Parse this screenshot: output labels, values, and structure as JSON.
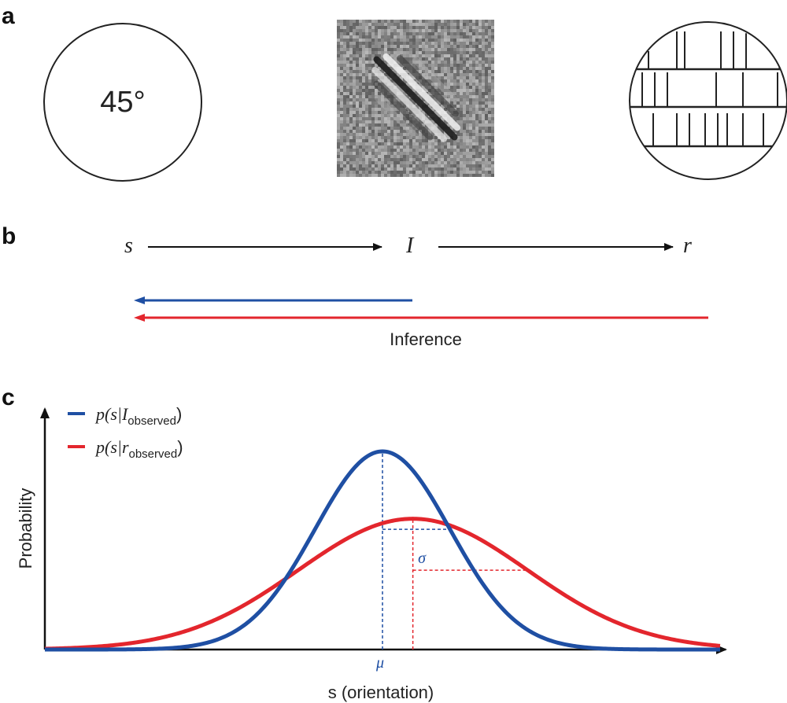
{
  "panels": {
    "a": {
      "label": "a",
      "angle_text": "45°"
    },
    "b": {
      "label": "b",
      "node_s": "s",
      "node_I": "I",
      "node_r": "r",
      "inference_label": "Inference"
    },
    "c": {
      "label": "c",
      "legend_blue": {
        "prefix": "p(s|",
        "var": "I",
        "sub": "observed",
        "suffix": ")"
      },
      "legend_red": {
        "prefix": "p(s|",
        "var": "r",
        "sub": "observed",
        "suffix": ")"
      },
      "ylabel": "Probability",
      "xlabel": "s (orientation)",
      "mu_label": "μ",
      "sigma_label": "σ"
    }
  },
  "colors": {
    "blue": "#1f4fa3",
    "red": "#e3262d",
    "axis": "#111111"
  },
  "spike_trains": [
    [
      0.12,
      0.3,
      0.35,
      0.58,
      0.66,
      0.74,
      0.95
    ],
    [
      0.08,
      0.16,
      0.24,
      0.55,
      0.72,
      0.94
    ],
    [
      0.15,
      0.3,
      0.38,
      0.48,
      0.56,
      0.62,
      0.72,
      0.85
    ]
  ],
  "chart_data": {
    "type": "line",
    "xlabel": "s (orientation)",
    "ylabel": "Probability",
    "x_range": [
      -5,
      5
    ],
    "series": [
      {
        "name": "p(s|I_observed)",
        "color": "#1f4fa3",
        "mean": 0.0,
        "sd": 1.0,
        "peak": 1.0
      },
      {
        "name": "p(s|r_observed)",
        "color": "#e3262d",
        "mean": 0.45,
        "sd": 1.7,
        "peak": 0.66
      }
    ],
    "annotations": [
      "μ",
      "σ"
    ]
  }
}
